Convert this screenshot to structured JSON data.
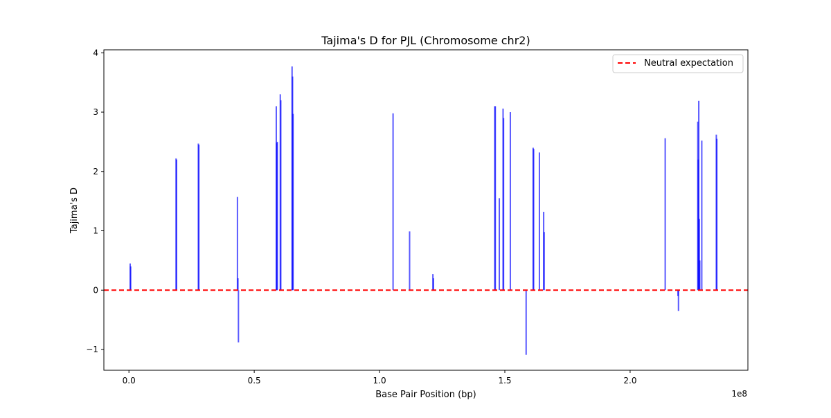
{
  "chart_data": {
    "type": "bar",
    "title": "Tajima's D for PJL (Chromosome chr2)",
    "xlabel": "Base Pair Position (bp)",
    "ylabel": "Tajima's D",
    "x_offset_label": "1e8",
    "xlim": [
      -10000000,
      247000000
    ],
    "ylim": [
      -1.35,
      4.05
    ],
    "x_ticks": [
      {
        "value": 0,
        "label": "0.0"
      },
      {
        "value": 50000000,
        "label": "0.5"
      },
      {
        "value": 100000000,
        "label": "1.0"
      },
      {
        "value": 150000000,
        "label": "1.5"
      },
      {
        "value": 200000000,
        "label": "2.0"
      }
    ],
    "y_ticks": [
      {
        "value": -1,
        "label": "−1"
      },
      {
        "value": 0,
        "label": "0"
      },
      {
        "value": 1,
        "label": "1"
      },
      {
        "value": 2,
        "label": "2"
      },
      {
        "value": 3,
        "label": "3"
      },
      {
        "value": 4,
        "label": "4"
      }
    ],
    "grid": false,
    "legend": {
      "position": "top-right",
      "entries": [
        {
          "label": "Neutral expectation",
          "style": "dashed",
          "color": "#ff0000"
        }
      ]
    },
    "bar_color": "#0000ff",
    "reference_line": {
      "y": 0,
      "label": "Neutral expectation",
      "color": "#ff0000",
      "style": "dashed"
    },
    "series": [
      {
        "x": [
          500000,
          700000,
          18800000,
          19000000,
          27700000,
          27900000,
          43300000,
          43500000,
          43700000,
          58800000,
          59000000,
          59200000,
          60400000,
          60600000,
          65100000,
          65300000,
          65500000,
          105400000,
          112000000,
          121300000,
          121500000,
          146000000,
          146200000,
          147800000,
          149300000,
          149500000,
          152200000,
          158500000,
          161300000,
          161500000,
          163800000,
          165500000,
          165700000,
          214000000,
          219100000,
          219300000,
          227000000,
          227200000,
          227400000,
          227600000,
          227800000,
          228600000,
          234400000,
          234600000
        ],
        "values": [
          0.45,
          0.4,
          2.22,
          2.2,
          2.47,
          2.45,
          1.57,
          0.2,
          -0.88,
          3.1,
          2.48,
          2.5,
          3.3,
          3.2,
          3.77,
          3.6,
          2.97,
          2.98,
          0.99,
          0.27,
          0.2,
          3.1,
          3.1,
          1.55,
          3.06,
          2.9,
          3.0,
          -1.09,
          2.4,
          2.38,
          2.32,
          1.32,
          0.98,
          2.56,
          -0.1,
          -0.35,
          2.84,
          2.2,
          3.19,
          1.2,
          0.5,
          2.52,
          2.62,
          2.55
        ]
      }
    ]
  }
}
